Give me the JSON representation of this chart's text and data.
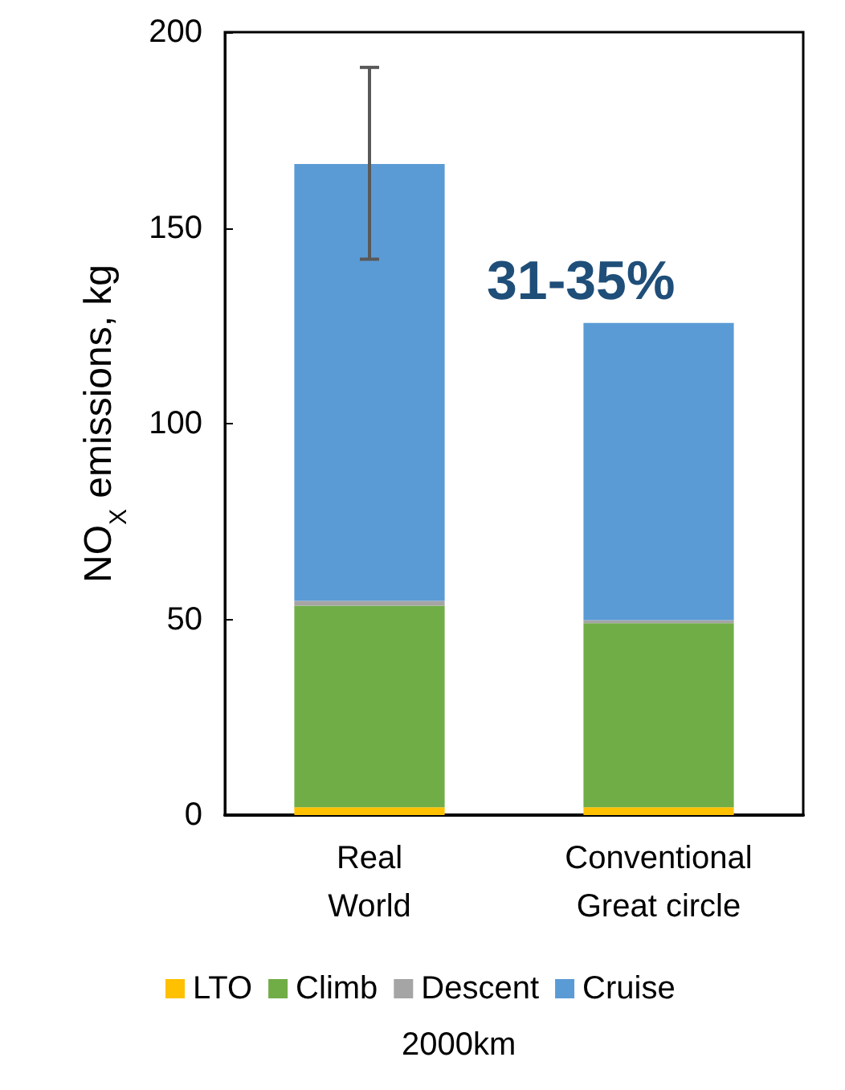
{
  "chart_data": {
    "type": "bar",
    "stacked": true,
    "ylabel": "NO$_{X}$ emissions, kg",
    "categories": [
      "Real\nWorld",
      "Conventional\nGreat circle"
    ],
    "series": [
      {
        "name": "LTO",
        "color": "#ffc000",
        "values": [
          2,
          2
        ]
      },
      {
        "name": "Climb",
        "color": "#70ad47",
        "values": [
          51.5,
          47
        ]
      },
      {
        "name": "Descent",
        "color": "#a5a5a5",
        "values": [
          1.2,
          0.8
        ]
      },
      {
        "name": "Cruise",
        "color": "#5b9bd5",
        "values": [
          111.6,
          75.9
        ],
        "errors": [
          [
            142,
            191
          ],
          null
        ]
      }
    ],
    "ylim": [
      0,
      200
    ],
    "yticks": [
      0,
      50,
      100,
      150,
      200
    ],
    "grid": false,
    "legend": "bottom",
    "annotations": [
      "31-35%",
      "2000km"
    ]
  }
}
